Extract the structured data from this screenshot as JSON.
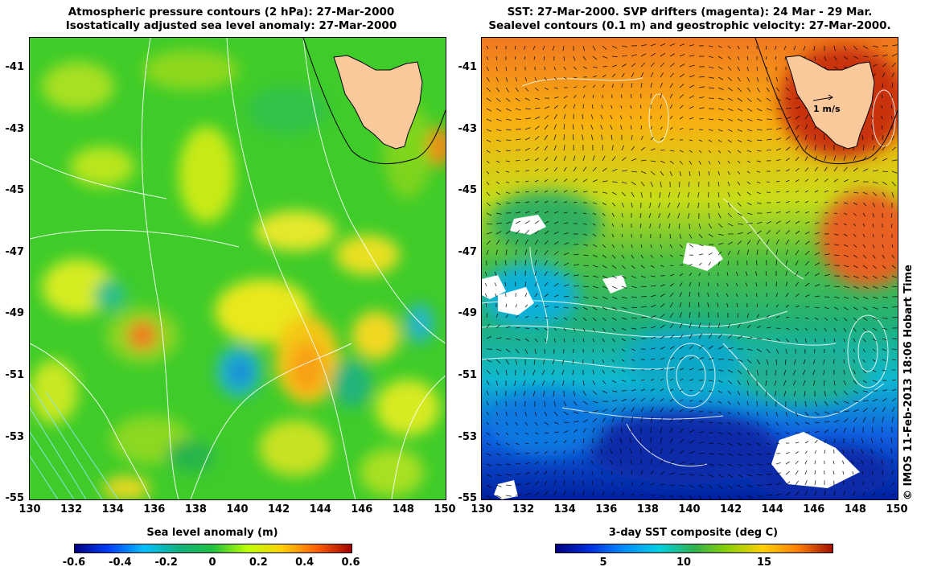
{
  "left_panel": {
    "title_line1": "Atmospheric pressure contours (2 hPa): 27-Mar-2000",
    "title_line2": "Isostatically adjusted sea level anomaly: 27-Mar-2000",
    "colorbar_label": "Sea level anomaly (m)",
    "colorbar_ticks": [
      "-0.6",
      "-0.4",
      "-0.2",
      "0",
      "0.2",
      "0.4",
      "0.6"
    ]
  },
  "right_panel": {
    "title_line1": "SST: 27-Mar-2000. SVP drifters (magenta): 24 Mar - 29 Mar.",
    "title_line2": "Sealevel contours (0.1 m) and geostrophic velocity: 27-Mar-2000.",
    "colorbar_label": "3-day SST composite (deg C)",
    "colorbar_ticks": [
      "5",
      "10",
      "15"
    ],
    "velocity_scale_label": "1 m/s"
  },
  "axes": {
    "y_ticks": [
      "-41",
      "-43",
      "-45",
      "-47",
      "-49",
      "-51",
      "-53",
      "-55"
    ],
    "x_ticks": [
      "130",
      "132",
      "134",
      "136",
      "138",
      "140",
      "142",
      "144",
      "146",
      "148",
      "150"
    ]
  },
  "credit": "© IMOS 11-Feb-2013 18:06 Hobart Time",
  "colors": {
    "land": "#f9c89b",
    "sla_scale": [
      "#00007f",
      "#0040ff",
      "#00c0ff",
      "#20c040",
      "#60d000",
      "#c0ff00",
      "#ffc000",
      "#ff6000",
      "#a00000"
    ],
    "sst_scale": [
      "#00007f",
      "#0050ff",
      "#00c0ff",
      "#30b050",
      "#90d000",
      "#ffd000",
      "#ff8000",
      "#a01000"
    ]
  }
}
